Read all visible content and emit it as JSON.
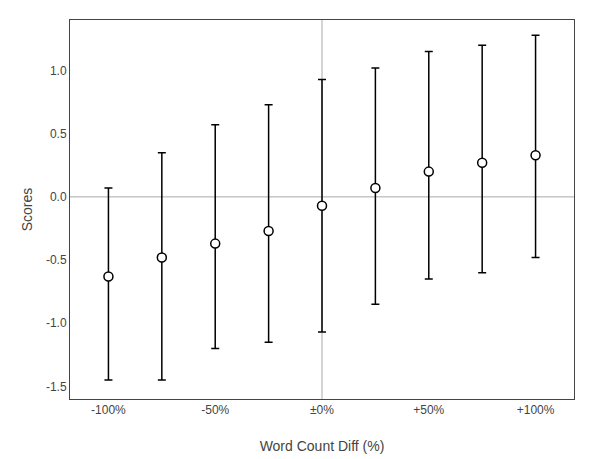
{
  "chart_data": {
    "type": "scatter",
    "x": [
      -100,
      -75,
      -50,
      -25,
      0,
      25,
      50,
      75,
      100
    ],
    "values": [
      -0.63,
      -0.48,
      -0.37,
      -0.27,
      -0.07,
      0.07,
      0.2,
      0.27,
      0.33
    ],
    "upper": [
      0.07,
      0.35,
      0.57,
      0.73,
      0.93,
      1.02,
      1.15,
      1.2,
      1.28
    ],
    "lower": [
      -1.45,
      -1.45,
      -1.2,
      -1.15,
      -1.07,
      -0.85,
      -0.65,
      -0.6,
      -0.48
    ],
    "xlabel": "Word Count Diff (%)",
    "ylabel": "Scores",
    "xlim": [
      -118,
      118
    ],
    "ylim": [
      -1.6,
      1.4
    ],
    "xticks": [
      {
        "value": -100,
        "label": "-100%"
      },
      {
        "value": -50,
        "label": "-50%"
      },
      {
        "value": 0,
        "label": "±0%"
      },
      {
        "value": 50,
        "label": "+50%"
      },
      {
        "value": 100,
        "label": "+100%"
      }
    ],
    "yticks": [
      -1.5,
      {
        "value": -1.0,
        "label": "-1.0"
      },
      -0.5,
      {
        "value": 0.0,
        "label": "0.0"
      },
      0.5,
      {
        "value": 1.0,
        "label": "1.0"
      }
    ],
    "color": "#000000",
    "marker": "open_circle",
    "hlines": [
      {
        "y": 0,
        "color": "#aaaaaa"
      }
    ],
    "vlines": [
      {
        "x": 0,
        "color": "#aaaaaa"
      }
    ],
    "grid": false
  }
}
